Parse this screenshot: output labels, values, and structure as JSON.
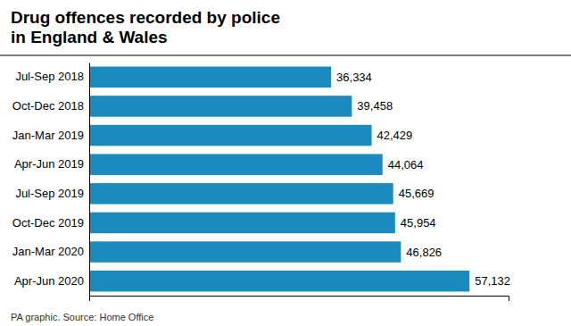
{
  "chart_data": {
    "type": "bar",
    "orientation": "horizontal",
    "title": [
      "Drug offences recorded by police",
      "in England & Wales"
    ],
    "annotations": [
      "PA graphic. Source: Home Office"
    ],
    "categories": [
      "Jul-Sep 2018",
      "Oct-Dec 2018",
      "Jan-Mar 2019",
      "Apr-Jun 2019",
      "Jul-Sep 2019",
      "Oct-Dec 2019",
      "Jan-Mar 2020",
      "Apr-Jun 2020"
    ],
    "values": [
      36334,
      39458,
      42429,
      44064,
      45669,
      45954,
      46826,
      57132
    ],
    "value_labels": [
      "36,334",
      "39,458",
      "42,429",
      "44,064",
      "45,669",
      "45,954",
      "46,826",
      "57,132"
    ],
    "data_labels": true,
    "color": "#1a8abf",
    "xlim": [
      0,
      63000
    ],
    "tick_labels": "y",
    "grid": false
  }
}
